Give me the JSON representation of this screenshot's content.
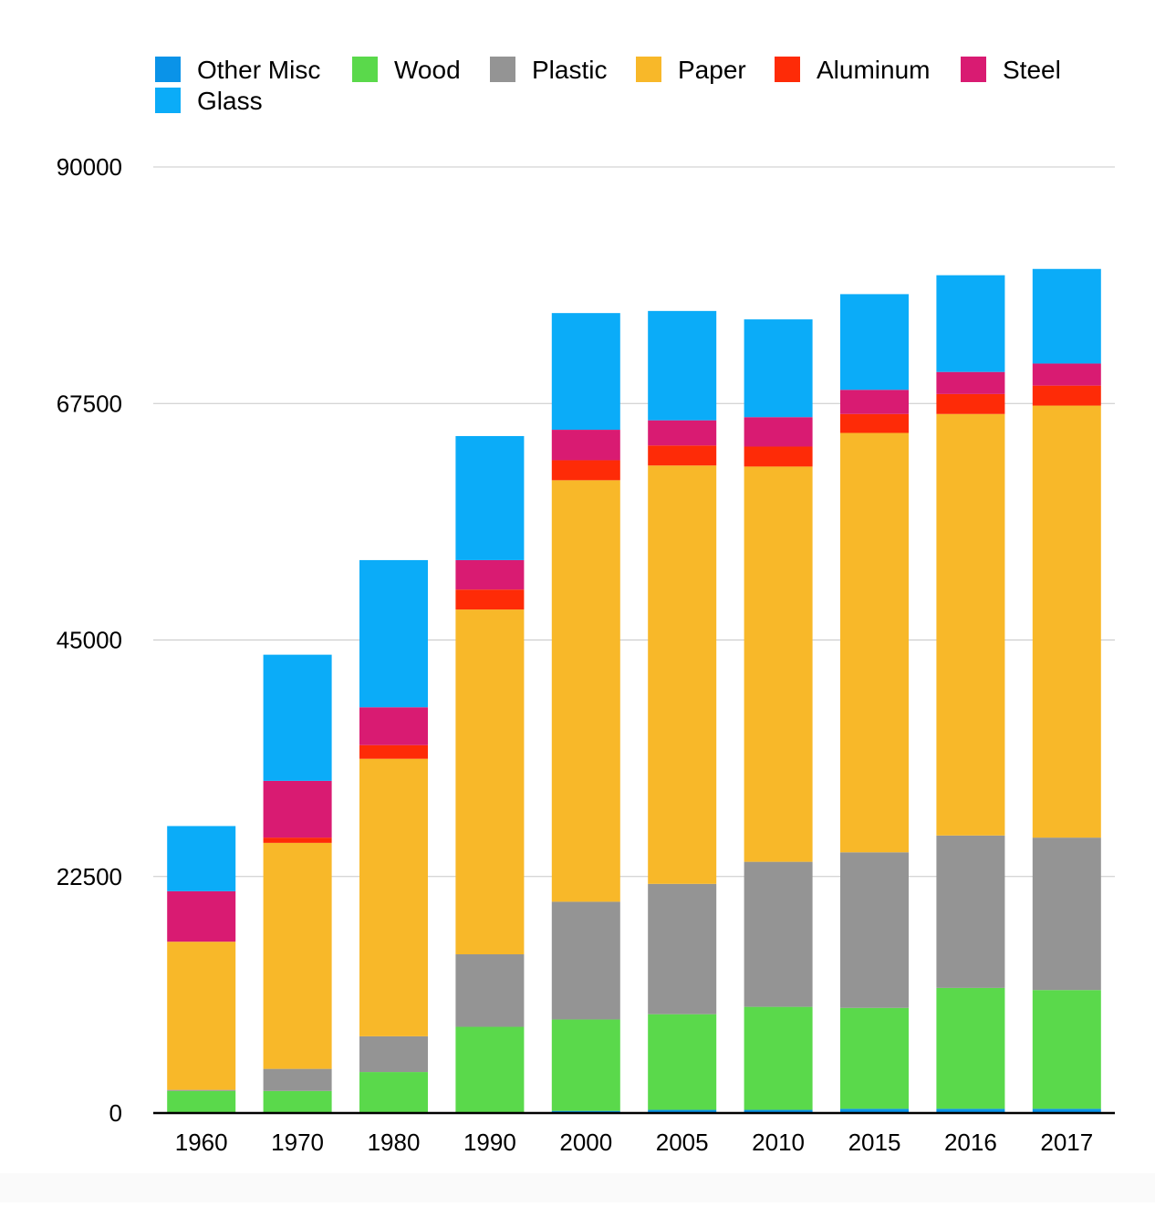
{
  "chart_data": {
    "type": "bar",
    "stacked": true,
    "title": "",
    "xlabel": "",
    "ylabel": "",
    "categories": [
      "1960",
      "1970",
      "1980",
      "1990",
      "2000",
      "2005",
      "2010",
      "2015",
      "2016",
      "2017"
    ],
    "ylim": [
      0,
      90000
    ],
    "yticks": [
      0,
      22500,
      45000,
      67500,
      90000
    ],
    "ytick_labels": [
      "0",
      "22500",
      "45000",
      "67500",
      "90000"
    ],
    "grid": true,
    "legend_position": "top",
    "series": [
      {
        "name": "Other Misc",
        "color": "#0a93e8",
        "values": [
          0,
          0,
          0,
          0,
          200,
          300,
          300,
          400,
          400,
          400
        ]
      },
      {
        "name": "Wood",
        "color": "#5ad94b",
        "values": [
          2100,
          2100,
          3900,
          8200,
          8700,
          9100,
          9800,
          9600,
          11500,
          11300
        ]
      },
      {
        "name": "Plastic",
        "color": "#949494",
        "values": [
          100,
          2100,
          3400,
          6900,
          11200,
          12400,
          13800,
          14800,
          14500,
          14500
        ]
      },
      {
        "name": "Paper",
        "color": "#f8b829",
        "values": [
          14100,
          21500,
          26400,
          32800,
          40100,
          39800,
          37600,
          39900,
          40100,
          41100
        ]
      },
      {
        "name": "Aluminum",
        "color": "#fe2b07",
        "values": [
          0,
          500,
          1300,
          1900,
          1900,
          1900,
          1900,
          1800,
          1900,
          1900
        ]
      },
      {
        "name": "Steel",
        "color": "#d91b72",
        "values": [
          4800,
          5400,
          3600,
          2800,
          2900,
          2400,
          2800,
          2300,
          2100,
          2100
        ]
      },
      {
        "name": "Glass",
        "color": "#0bacf8",
        "values": [
          6200,
          12000,
          14000,
          11800,
          11100,
          10400,
          9300,
          9100,
          9200,
          9000
        ]
      }
    ]
  }
}
